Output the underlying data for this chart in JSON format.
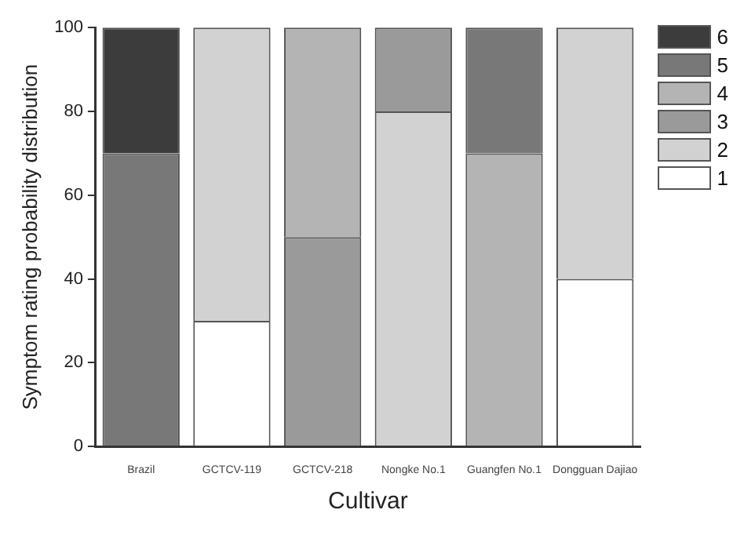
{
  "chart_data": {
    "type": "bar",
    "stacked": true,
    "xlabel": "Cultivar",
    "ylabel": "Symptom rating probability distribution",
    "categories": [
      "Brazil",
      "GCTCV-119",
      "GCTCV-218",
      "Nongke No.1",
      "Guangfen No.1",
      "Dongguan Dajiao"
    ],
    "series": [
      {
        "name": "1",
        "color": "#ffffff",
        "values": [
          null,
          30,
          null,
          null,
          null,
          40
        ]
      },
      {
        "name": "2",
        "color": "#d2d2d2",
        "values": [
          null,
          70,
          null,
          80,
          null,
          60
        ]
      },
      {
        "name": "3",
        "color": "#9a9a9a",
        "values": [
          null,
          null,
          50,
          20,
          null,
          null
        ]
      },
      {
        "name": "4",
        "color": "#b4b4b4",
        "values": [
          null,
          null,
          50,
          null,
          70,
          null
        ]
      },
      {
        "name": "5",
        "color": "#787878",
        "values": [
          70,
          null,
          null,
          null,
          30,
          null
        ]
      },
      {
        "name": "6",
        "color": "#3c3c3c",
        "values": [
          30,
          null,
          null,
          null,
          null,
          null
        ]
      }
    ],
    "ylim": [
      0,
      100
    ],
    "yticks": [
      0,
      20,
      40,
      60,
      80,
      100
    ],
    "grid": false,
    "legend": "top right"
  }
}
